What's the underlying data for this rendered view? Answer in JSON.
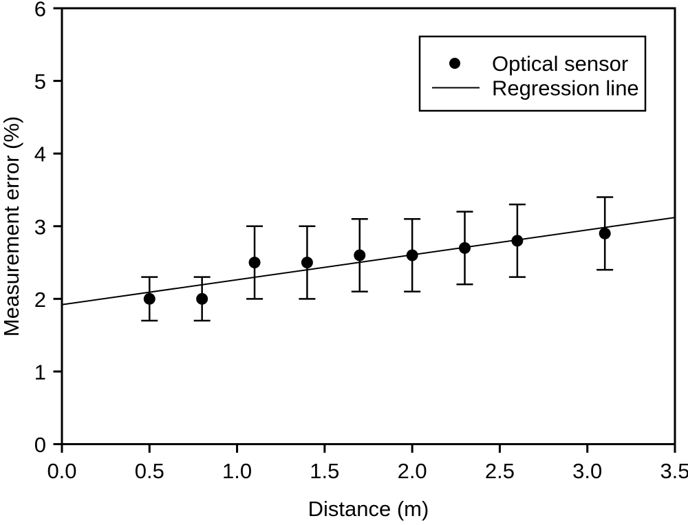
{
  "figure": {
    "background": "#ffffff",
    "foreground": "#000000"
  },
  "chart_data": {
    "type": "scatter",
    "title": "",
    "xlabel": "Distance (m)",
    "ylabel": "Measurement error (%)",
    "xlim": [
      0.0,
      3.5
    ],
    "ylim": [
      0,
      6
    ],
    "x_ticks": [
      0.0,
      0.5,
      1.0,
      1.5,
      2.0,
      2.5,
      3.0,
      3.5
    ],
    "x_tick_labels": [
      "0.0",
      "0.5",
      "1.0",
      "1.5",
      "2.0",
      "2.5",
      "3.0",
      "3.5"
    ],
    "y_ticks": [
      0,
      1,
      2,
      3,
      4,
      5,
      6
    ],
    "y_tick_labels": [
      "0",
      "1",
      "2",
      "3",
      "4",
      "5",
      "6"
    ],
    "grid": false,
    "legend_position": "top-right",
    "series": [
      {
        "name": "Optical sensor",
        "type": "scatter",
        "marker": "filled-circle",
        "color": "#000000",
        "x": [
          0.5,
          0.8,
          1.1,
          1.4,
          1.7,
          2.0,
          2.3,
          2.6,
          3.1
        ],
        "y": [
          2.0,
          2.0,
          2.5,
          2.5,
          2.6,
          2.6,
          2.7,
          2.8,
          2.9
        ],
        "y_error": [
          0.3,
          0.3,
          0.5,
          0.5,
          0.5,
          0.5,
          0.5,
          0.5,
          0.5
        ]
      },
      {
        "name": "Regression line",
        "type": "line",
        "color": "#000000",
        "x": [
          0.0,
          3.5
        ],
        "y": [
          1.92,
          3.12
        ]
      }
    ]
  }
}
